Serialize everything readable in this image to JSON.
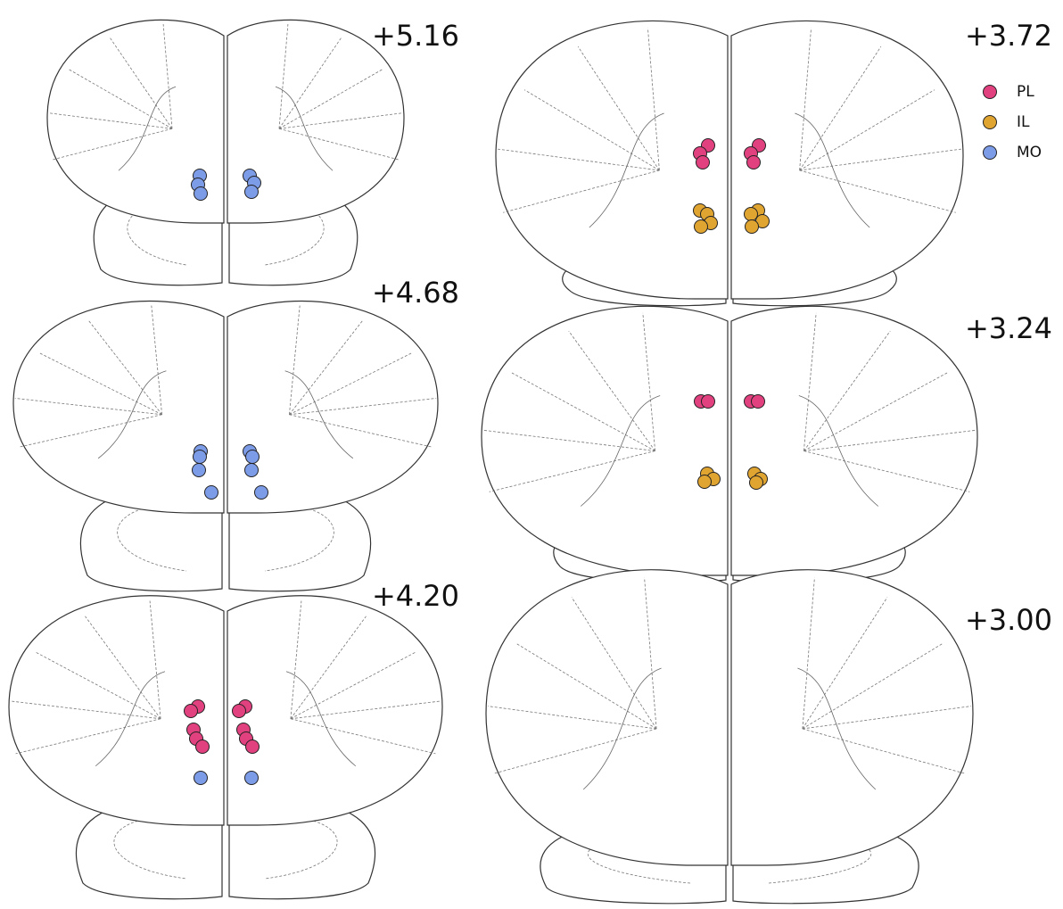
{
  "sections": [
    {
      "label": "+5.16"
    },
    {
      "label": "+4.68"
    },
    {
      "label": "+4.20"
    },
    {
      "label": "+3.72"
    },
    {
      "label": "+3.24"
    },
    {
      "label": "+3.00"
    }
  ],
  "legend": [
    {
      "label": "PL",
      "color": "#e2417f"
    },
    {
      "label": "IL",
      "color": "#e0a431"
    },
    {
      "label": "MO",
      "color": "#7d9ce8"
    }
  ]
}
